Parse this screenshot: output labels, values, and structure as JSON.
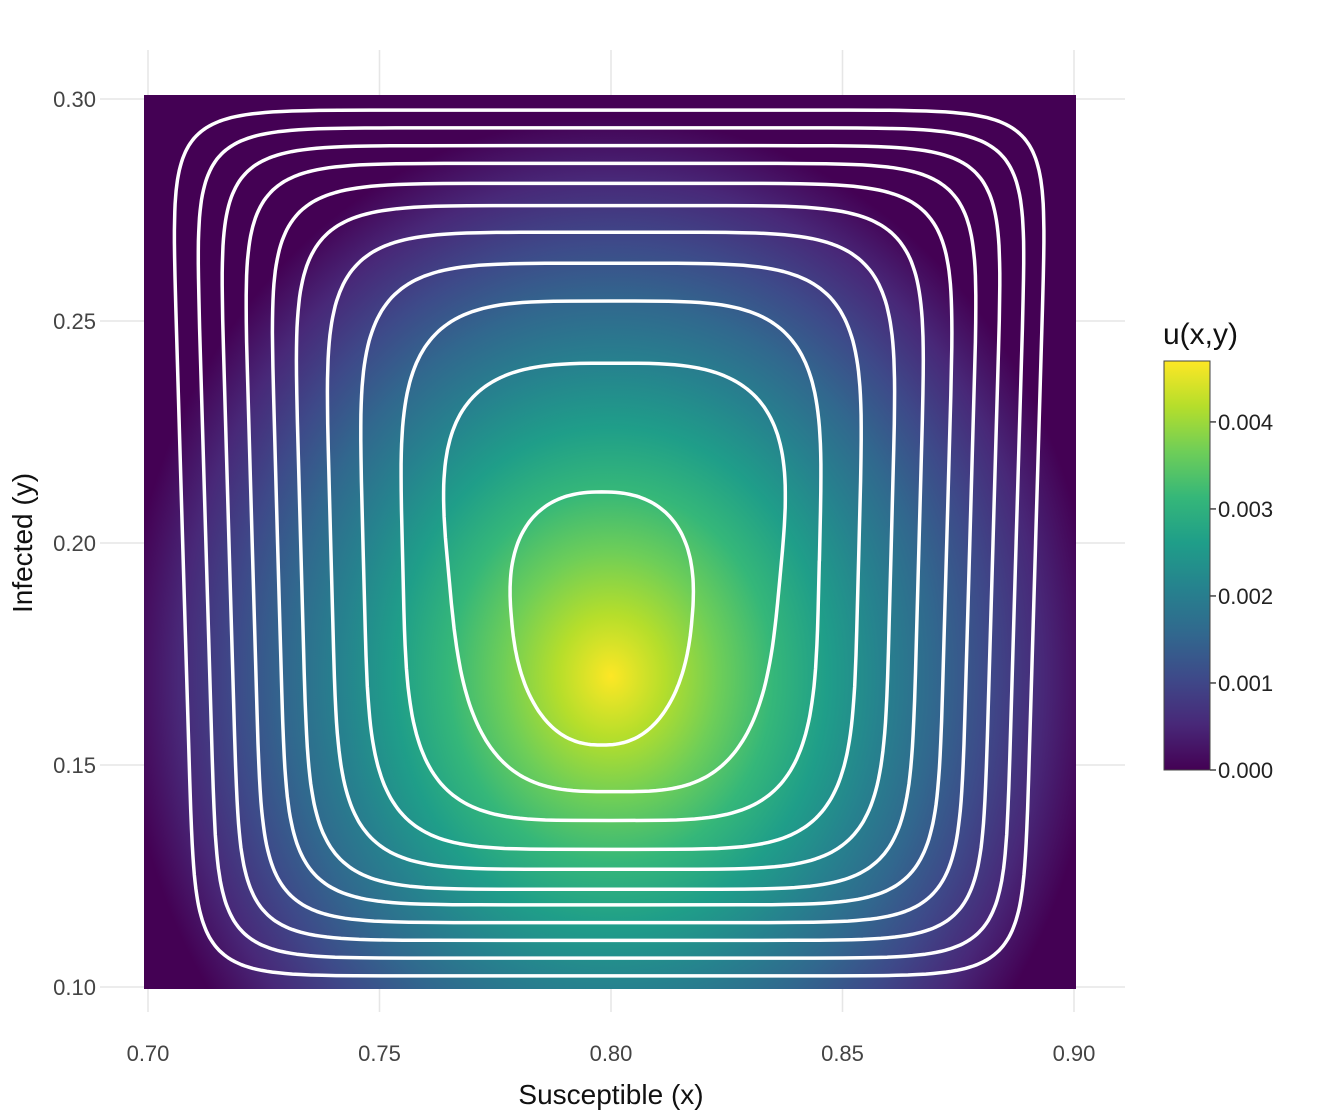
{
  "chart_data": {
    "type": "heatmap",
    "subtype": "contour",
    "colorscale": "Viridis",
    "colorscale_colors": [
      "#440154",
      "#482878",
      "#3e4989",
      "#31688e",
      "#26828e",
      "#1f9e89",
      "#35b779",
      "#6ece58",
      "#b5de2b",
      "#fde725"
    ],
    "contour_line_color": "#ffffff",
    "grid": true,
    "xlabel": "Susceptible (x)",
    "ylabel": "Infected (y)",
    "xlim": [
      0.7,
      0.9
    ],
    "ylim": [
      0.1,
      0.3
    ],
    "x_ticks": [
      0.7,
      0.75,
      0.8,
      0.85,
      0.9
    ],
    "x_tick_labels": [
      "0.70",
      "0.75",
      "0.80",
      "0.85",
      "0.90"
    ],
    "y_ticks": [
      0.1,
      0.15,
      0.2,
      0.25,
      0.3
    ],
    "y_tick_labels": [
      "0.10",
      "0.15",
      "0.20",
      "0.25",
      "0.30"
    ],
    "colorbar": {
      "title": "u(x,y)",
      "range": [
        0,
        0.0047
      ],
      "ticks": [
        0,
        0.001,
        0.002,
        0.003,
        0.004
      ],
      "tick_labels": [
        "0.000",
        "0.001",
        "0.002",
        "0.003",
        "0.004"
      ]
    },
    "z_max": 0.0047,
    "z_max_location": {
      "x": 0.8,
      "y": 0.17
    },
    "contour_levels": [
      0.0002,
      0.0006,
      0.001,
      0.0014,
      0.0018,
      0.0022,
      0.0026,
      0.003,
      0.0034,
      0.0038,
      0.0043
    ],
    "contours": [
      {
        "level": 0.0002,
        "x_range": [
          0.7075,
          0.8917
        ],
        "y_range": [
          0.1025,
          0.2975
        ]
      },
      {
        "level": 0.0006,
        "x_range": [
          0.7125,
          0.8875
        ],
        "y_range": [
          0.1065,
          0.2935
        ]
      },
      {
        "level": 0.001,
        "x_range": [
          0.7175,
          0.8825
        ],
        "y_range": [
          0.1105,
          0.2895
        ]
      },
      {
        "level": 0.0014,
        "x_range": [
          0.7225,
          0.8775
        ],
        "y_range": [
          0.1145,
          0.2855
        ]
      },
      {
        "level": 0.0018,
        "x_range": [
          0.728,
          0.8725
        ],
        "y_range": [
          0.1185,
          0.281
        ]
      },
      {
        "level": 0.0022,
        "x_range": [
          0.733,
          0.8665
        ],
        "y_range": [
          0.122,
          0.276
        ]
      },
      {
        "level": 0.0026,
        "x_range": [
          0.7395,
          0.8605
        ],
        "y_range": [
          0.1265,
          0.27
        ]
      },
      {
        "level": 0.003,
        "x_range": [
          0.7465,
          0.8535
        ],
        "y_range": [
          0.131,
          0.263
        ]
      },
      {
        "level": 0.0034,
        "x_range": [
          0.755,
          0.845
        ],
        "y_range": [
          0.1375,
          0.2545
        ]
      },
      {
        "level": 0.0038,
        "x_range": [
          0.765,
          0.8365
        ],
        "y_range": [
          0.144,
          0.2405
        ]
      },
      {
        "level": 0.0043,
        "x_range": [
          0.7785,
          0.8175
        ],
        "y_range": [
          0.1545,
          0.2115
        ]
      }
    ]
  }
}
